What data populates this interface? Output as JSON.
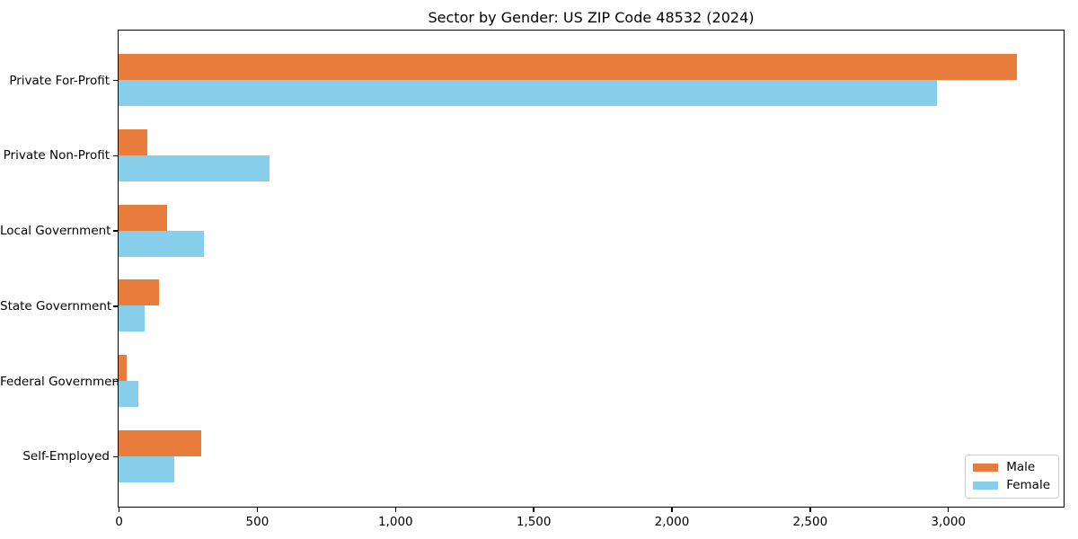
{
  "chart_data": {
    "type": "bar",
    "orientation": "horizontal",
    "title": "Sector by Gender: US ZIP Code 48532 (2024)",
    "xlabel": "",
    "ylabel": "",
    "grid": false,
    "background_color": "#ffffff",
    "axis_color": "#000000",
    "categories": [
      "Private For-Profit",
      "Private Non-Profit",
      "Local Government",
      "State Government",
      "Federal Government",
      "Self-Employed"
    ],
    "series": [
      {
        "name": "Male",
        "color": "#E87C3C",
        "values": [
          3250,
          105,
          175,
          145,
          30,
          300
        ]
      },
      {
        "name": "Female",
        "color": "#87CEEB",
        "values": [
          2960,
          545,
          310,
          95,
          70,
          200
        ]
      }
    ],
    "xlim": [
      0,
      3415
    ],
    "xticks": [
      0,
      500,
      1000,
      1500,
      2000,
      2500,
      3000
    ],
    "xtick_labels": [
      "0",
      "500",
      "1,000",
      "1,500",
      "2,000",
      "2,500",
      "3,000"
    ],
    "legend_position": "lower right",
    "legend_entries": [
      "Male",
      "Female"
    ]
  }
}
